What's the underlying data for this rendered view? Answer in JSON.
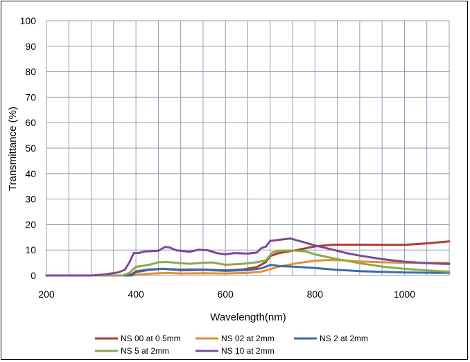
{
  "chart_data": {
    "type": "line",
    "title": "",
    "xlabel": "Wavelength(nm)",
    "ylabel": "Transmittance (%)",
    "xlim": [
      200,
      1100
    ],
    "ylim": [
      0,
      100
    ],
    "x_ticks": [
      "200",
      "400",
      "600",
      "800",
      "1000"
    ],
    "y_ticks": [
      "0",
      "10",
      "20",
      "30",
      "40",
      "50",
      "60",
      "70",
      "80",
      "90",
      "100"
    ],
    "grid": true,
    "legend_position": "bottom",
    "series": [
      {
        "name": "NS 00 at 0.5mm",
        "color": "#b23a33",
        "points": [
          [
            200,
            0
          ],
          [
            380,
            0
          ],
          [
            390,
            0.5
          ],
          [
            400,
            1.6
          ],
          [
            430,
            2.4
          ],
          [
            460,
            2.6
          ],
          [
            500,
            2.3
          ],
          [
            550,
            2.4
          ],
          [
            600,
            2.0
          ],
          [
            640,
            2.4
          ],
          [
            670,
            3.3
          ],
          [
            690,
            5.2
          ],
          [
            700,
            7.6
          ],
          [
            720,
            8.8
          ],
          [
            760,
            10.0
          ],
          [
            800,
            11.4
          ],
          [
            840,
            12.1
          ],
          [
            900,
            12.1
          ],
          [
            950,
            12.0
          ],
          [
            1000,
            12.0
          ],
          [
            1050,
            12.6
          ],
          [
            1100,
            13.4
          ]
        ]
      },
      {
        "name": "NS 02 at 2mm",
        "color": "#e98c2f",
        "points": [
          [
            200,
            0
          ],
          [
            390,
            0
          ],
          [
            410,
            0.4
          ],
          [
            440,
            0.8
          ],
          [
            470,
            1.0
          ],
          [
            500,
            0.8
          ],
          [
            550,
            0.9
          ],
          [
            600,
            0.8
          ],
          [
            650,
            1.0
          ],
          [
            680,
            1.5
          ],
          [
            700,
            2.5
          ],
          [
            720,
            3.5
          ],
          [
            760,
            4.8
          ],
          [
            800,
            5.8
          ],
          [
            830,
            6.1
          ],
          [
            860,
            6.0
          ],
          [
            900,
            5.5
          ],
          [
            950,
            5.2
          ],
          [
            1000,
            5.0
          ],
          [
            1050,
            5.0
          ],
          [
            1100,
            5.0
          ]
        ]
      },
      {
        "name": "NS 2 at 2mm",
        "color": "#3b6ba8",
        "points": [
          [
            200,
            0
          ],
          [
            390,
            0
          ],
          [
            400,
            1.3
          ],
          [
            430,
            2.2
          ],
          [
            460,
            2.6
          ],
          [
            500,
            2.0
          ],
          [
            550,
            2.2
          ],
          [
            600,
            1.8
          ],
          [
            650,
            2.1
          ],
          [
            680,
            2.8
          ],
          [
            700,
            4.1
          ],
          [
            710,
            4.0
          ],
          [
            720,
            3.7
          ],
          [
            760,
            3.4
          ],
          [
            800,
            2.9
          ],
          [
            850,
            2.2
          ],
          [
            900,
            1.7
          ],
          [
            950,
            1.4
          ],
          [
            1000,
            1.2
          ],
          [
            1050,
            1.1
          ],
          [
            1100,
            1.0
          ]
        ]
      },
      {
        "name": "NS 5 at 2mm",
        "color": "#8aaa4a",
        "points": [
          [
            200,
            0
          ],
          [
            370,
            0
          ],
          [
            385,
            1.0
          ],
          [
            400,
            3.4
          ],
          [
            430,
            4.2
          ],
          [
            450,
            5.2
          ],
          [
            470,
            5.3
          ],
          [
            500,
            4.8
          ],
          [
            520,
            4.6
          ],
          [
            550,
            5.0
          ],
          [
            570,
            5.1
          ],
          [
            600,
            4.2
          ],
          [
            640,
            4.6
          ],
          [
            670,
            5.2
          ],
          [
            690,
            5.9
          ],
          [
            705,
            9.0
          ],
          [
            720,
            9.7
          ],
          [
            750,
            9.8
          ],
          [
            780,
            9.4
          ],
          [
            800,
            8.3
          ],
          [
            850,
            6.4
          ],
          [
            900,
            4.8
          ],
          [
            950,
            3.5
          ],
          [
            1000,
            2.6
          ],
          [
            1050,
            2.0
          ],
          [
            1100,
            1.5
          ]
        ]
      },
      {
        "name": "NS 10 at 2mm",
        "color": "#7a4a98",
        "points": [
          [
            200,
            0
          ],
          [
            300,
            0
          ],
          [
            330,
            0.4
          ],
          [
            360,
            1.2
          ],
          [
            375,
            2.2
          ],
          [
            385,
            5.0
          ],
          [
            395,
            8.8
          ],
          [
            405,
            8.8
          ],
          [
            420,
            9.4
          ],
          [
            450,
            9.7
          ],
          [
            465,
            11.2
          ],
          [
            475,
            11.0
          ],
          [
            490,
            9.9
          ],
          [
            520,
            9.3
          ],
          [
            540,
            10.1
          ],
          [
            560,
            9.9
          ],
          [
            580,
            8.8
          ],
          [
            600,
            8.3
          ],
          [
            620,
            8.8
          ],
          [
            650,
            8.6
          ],
          [
            670,
            9.0
          ],
          [
            680,
            10.7
          ],
          [
            690,
            11.3
          ],
          [
            700,
            13.6
          ],
          [
            720,
            14.0
          ],
          [
            745,
            14.5
          ],
          [
            770,
            13.3
          ],
          [
            800,
            11.8
          ],
          [
            840,
            10.1
          ],
          [
            870,
            8.8
          ],
          [
            900,
            7.8
          ],
          [
            950,
            6.4
          ],
          [
            1000,
            5.4
          ],
          [
            1050,
            4.8
          ],
          [
            1100,
            4.5
          ]
        ]
      }
    ]
  }
}
